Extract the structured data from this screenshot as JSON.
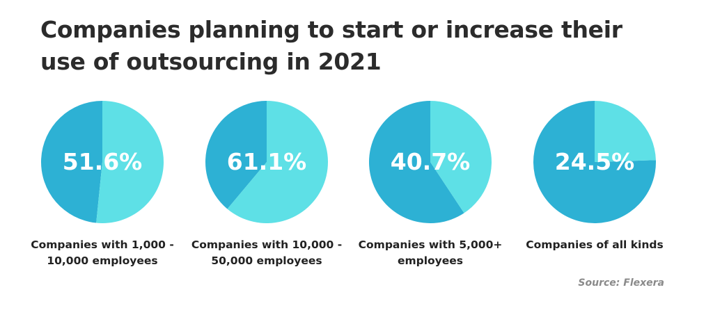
{
  "title": "Companies planning to start or increase their use of outsourcing in 2021",
  "source": "Source: Flexera",
  "colors": {
    "value": "#5ee0e6",
    "rest": "#2db1d4"
  },
  "chart_data": [
    {
      "type": "pie",
      "label": "Companies with 1,000 - 10,000 employees",
      "value": 51.6,
      "value_label": "51.6%"
    },
    {
      "type": "pie",
      "label": "Companies with 10,000 - 50,000 employees",
      "value": 61.1,
      "value_label": "61.1%"
    },
    {
      "type": "pie",
      "label": "Companies with 5,000+ employees",
      "value": 40.7,
      "value_label": "40.7%"
    },
    {
      "type": "pie",
      "label": "Companies of all kinds",
      "value": 24.5,
      "value_label": "24.5%"
    }
  ]
}
